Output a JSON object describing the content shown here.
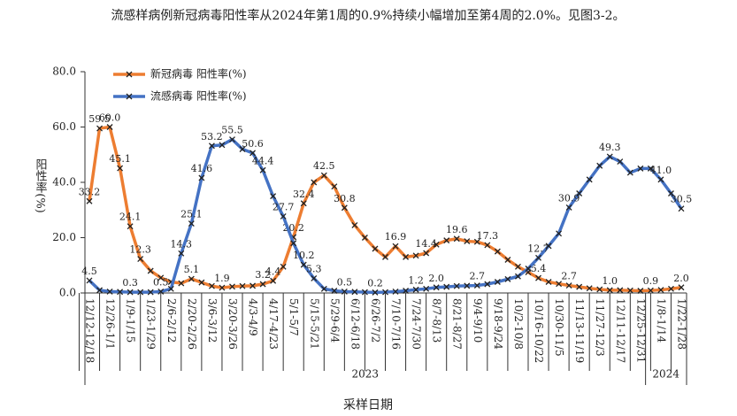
{
  "chart_data": {
    "type": "line",
    "title": "流感样病例新冠病毒阳性率从2024年第1周的0.9%持续小幅增加至第4周的2.0%。见图3-2。",
    "x_label": "采样日期",
    "y_label": "阳性率(%)",
    "categories": [
      "12/12-12/18",
      null,
      "12/26-1/1",
      null,
      "1/9-1/15",
      null,
      "1/23-1/29",
      null,
      "2/6-2/12",
      null,
      "2/20-2/26",
      null,
      "3/6-3/12",
      null,
      "3/20-3/26",
      null,
      "4/3-4/9",
      null,
      "4/17-4/23",
      null,
      "5/1-5/7",
      null,
      "5/15-5/21",
      null,
      "5/29-6/4",
      null,
      "6/12-6/18",
      null,
      "6/26-7/2",
      null,
      "7/10-7/16",
      null,
      "7/24-7/30",
      null,
      "8/7-8/13",
      null,
      "8/21-8/27",
      null,
      "9/4-9/10",
      null,
      "9/18-9/24",
      null,
      "10/2-10/8",
      null,
      "10/16-10/22",
      null,
      "10/30-11/5",
      null,
      "11/13-11/19",
      null,
      "11/27-12/3",
      null,
      "12/11-12/17",
      null,
      "12/25-12/31",
      null,
      "1/8-1/14",
      null,
      "1/22-1/28"
    ],
    "x_groups": [
      {
        "label": "2023",
        "categories": [
          0,
          54
        ]
      },
      {
        "label": "2024",
        "categories": [
          55,
          58
        ]
      }
    ],
    "ylim": [
      0,
      80
    ],
    "yticks": [
      {
        "value": 0,
        "label": "0.0"
      },
      {
        "value": 20,
        "label": "20.0"
      },
      {
        "value": 40,
        "label": "40.0"
      },
      {
        "value": 60,
        "label": "60.0"
      },
      {
        "value": 80,
        "label": "80.0"
      }
    ],
    "grid": false,
    "legend": "top-left",
    "series": [
      {
        "name": "新冠病毒 阳性率(%)",
        "color": "#ed7d31",
        "values": [
          33.2,
          59.5,
          60.0,
          45.1,
          24.1,
          12.3,
          8.0,
          5.5,
          4.0,
          3.5,
          5.1,
          3.8,
          2.5,
          1.9,
          2.3,
          2.5,
          2.6,
          3.2,
          4.4,
          9.5,
          20.2,
          32.4,
          40.0,
          42.5,
          38.5,
          30.8,
          24.5,
          20.0,
          16.0,
          13.0,
          16.9,
          13.0,
          13.5,
          14.4,
          17.5,
          19.0,
          19.6,
          18.7,
          18.5,
          17.3,
          15.0,
          12.0,
          9.5,
          7.5,
          5.4,
          4.0,
          3.3,
          2.7,
          2.2,
          1.7,
          1.3,
          1.0,
          1.0,
          0.9,
          0.8,
          0.9,
          1.1,
          1.5,
          2.0
        ],
        "value_labels": [
          "33.2",
          "59.5",
          "60.0",
          "45.1",
          "24.1",
          "12.3",
          null,
          null,
          null,
          null,
          "5.1",
          null,
          null,
          "1.9",
          null,
          null,
          null,
          "3.2",
          "4.4",
          null,
          "20.2",
          "32.4",
          null,
          "42.5",
          null,
          "30.8",
          null,
          null,
          null,
          null,
          "16.9",
          null,
          null,
          "14.4",
          null,
          null,
          "19.6",
          null,
          null,
          "17.3",
          null,
          null,
          null,
          null,
          "5.4",
          null,
          null,
          "2.7",
          null,
          null,
          null,
          "1.0",
          null,
          null,
          null,
          "0.9",
          null,
          null,
          "2.0"
        ]
      },
      {
        "name": "流感病毒 阳性率(%)",
        "color": "#4472c4",
        "values": [
          4.5,
          1.0,
          0.5,
          0.4,
          0.3,
          0.3,
          0.3,
          0.5,
          1.5,
          14.3,
          25.1,
          41.6,
          53.2,
          53.5,
          55.5,
          52.0,
          50.6,
          44.4,
          35.0,
          27.7,
          18.0,
          10.2,
          5.3,
          1.5,
          0.8,
          0.5,
          0.4,
          0.3,
          0.2,
          0.3,
          0.5,
          0.8,
          1.2,
          1.5,
          2.0,
          2.2,
          2.5,
          2.6,
          2.7,
          3.2,
          4.0,
          5.0,
          6.0,
          8.8,
          12.7,
          17.0,
          21.5,
          30.9,
          36.0,
          41.0,
          46.0,
          49.3,
          47.5,
          43.5,
          45.0,
          45.0,
          41.0,
          36.0,
          30.5
        ],
        "value_labels": [
          "4.5",
          null,
          null,
          null,
          "0.3",
          null,
          null,
          "0.5",
          null,
          "14.3",
          "25.1",
          "41.6",
          "53.2",
          null,
          "55.5",
          null,
          "50.6",
          "44.4",
          null,
          "27.7",
          null,
          "10.2",
          "5.3",
          null,
          null,
          "0.5",
          null,
          null,
          "0.2",
          null,
          null,
          null,
          "1.2",
          null,
          "2.0",
          null,
          null,
          null,
          "2.7",
          null,
          null,
          null,
          null,
          null,
          "12.7",
          null,
          null,
          "30.9",
          null,
          null,
          null,
          "49.3",
          null,
          null,
          null,
          null,
          "41.0",
          null,
          "30.5"
        ]
      }
    ]
  }
}
